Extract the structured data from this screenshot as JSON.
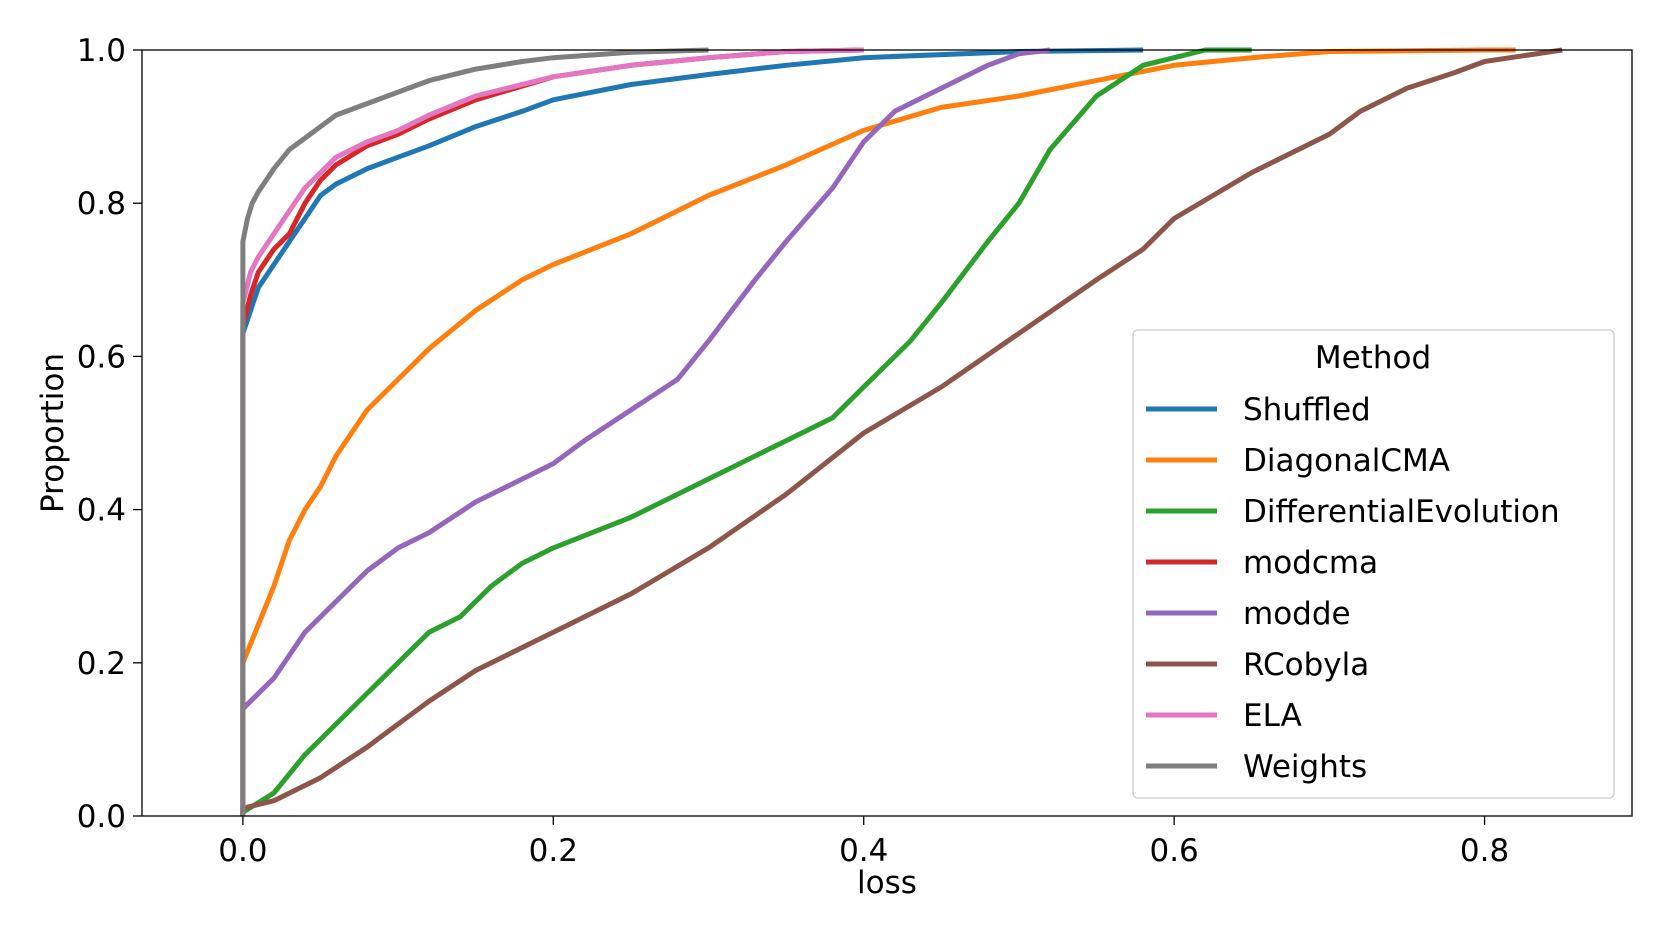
{
  "chart_data": {
    "type": "line",
    "title": "",
    "xlabel": "loss",
    "ylabel": "Proportion",
    "xlim": [
      -0.065,
      0.895
    ],
    "ylim": [
      0.0,
      1.0
    ],
    "xticks": [
      0.0,
      0.2,
      0.4,
      0.6,
      0.8
    ],
    "yticks": [
      0.0,
      0.2,
      0.4,
      0.6,
      0.8,
      1.0
    ],
    "xtick_labels": [
      "0.0",
      "0.2",
      "0.4",
      "0.6",
      "0.8"
    ],
    "ytick_labels": [
      "0.0",
      "0.2",
      "0.4",
      "0.6",
      "0.8",
      "1.0"
    ],
    "grid": false,
    "legend": {
      "title": "Method",
      "position": "center-right"
    },
    "series": [
      {
        "name": "Shuffled",
        "color": "#1f77b4",
        "x": [
          0.0,
          0.0,
          0.005,
          0.01,
          0.02,
          0.03,
          0.04,
          0.05,
          0.06,
          0.08,
          0.1,
          0.12,
          0.15,
          0.18,
          0.2,
          0.25,
          0.3,
          0.35,
          0.4,
          0.5,
          0.58
        ],
        "y": [
          0.0,
          0.63,
          0.66,
          0.69,
          0.72,
          0.75,
          0.78,
          0.81,
          0.825,
          0.845,
          0.86,
          0.875,
          0.9,
          0.92,
          0.935,
          0.955,
          0.968,
          0.98,
          0.99,
          0.998,
          1.0
        ]
      },
      {
        "name": "DiagonalCMA",
        "color": "#ff7f0e",
        "x": [
          0.0,
          0.0,
          0.01,
          0.02,
          0.03,
          0.04,
          0.05,
          0.06,
          0.08,
          0.1,
          0.12,
          0.15,
          0.18,
          0.2,
          0.25,
          0.3,
          0.35,
          0.4,
          0.45,
          0.5,
          0.55,
          0.6,
          0.65,
          0.7,
          0.8,
          0.82
        ],
        "y": [
          0.0,
          0.2,
          0.25,
          0.3,
          0.36,
          0.4,
          0.43,
          0.47,
          0.53,
          0.57,
          0.61,
          0.66,
          0.7,
          0.72,
          0.76,
          0.81,
          0.85,
          0.895,
          0.925,
          0.94,
          0.96,
          0.98,
          0.99,
          0.998,
          1.0,
          1.0
        ]
      },
      {
        "name": "DifferentialEvolution",
        "color": "#2ca02c",
        "x": [
          0.0,
          0.0,
          0.02,
          0.04,
          0.06,
          0.08,
          0.1,
          0.12,
          0.14,
          0.16,
          0.18,
          0.2,
          0.25,
          0.3,
          0.35,
          0.38,
          0.4,
          0.43,
          0.45,
          0.48,
          0.5,
          0.52,
          0.55,
          0.58,
          0.6,
          0.62,
          0.65
        ],
        "y": [
          0.0,
          0.005,
          0.03,
          0.08,
          0.12,
          0.16,
          0.2,
          0.24,
          0.26,
          0.3,
          0.33,
          0.35,
          0.39,
          0.44,
          0.49,
          0.52,
          0.56,
          0.62,
          0.67,
          0.75,
          0.8,
          0.87,
          0.94,
          0.98,
          0.99,
          1.0,
          1.0
        ]
      },
      {
        "name": "modcma",
        "color": "#d62728",
        "x": [
          0.0,
          0.0,
          0.005,
          0.01,
          0.02,
          0.03,
          0.04,
          0.05,
          0.06,
          0.08,
          0.1,
          0.12,
          0.15,
          0.2,
          0.25,
          0.3,
          0.35,
          0.4
        ],
        "y": [
          0.0,
          0.64,
          0.68,
          0.71,
          0.74,
          0.76,
          0.8,
          0.83,
          0.85,
          0.875,
          0.89,
          0.91,
          0.935,
          0.965,
          0.98,
          0.99,
          0.998,
          1.0
        ]
      },
      {
        "name": "modde",
        "color": "#9467bd",
        "x": [
          0.0,
          0.0,
          0.02,
          0.04,
          0.06,
          0.08,
          0.1,
          0.12,
          0.15,
          0.18,
          0.2,
          0.22,
          0.25,
          0.28,
          0.3,
          0.33,
          0.35,
          0.38,
          0.4,
          0.42,
          0.45,
          0.48,
          0.5,
          0.52
        ],
        "y": [
          0.0,
          0.14,
          0.18,
          0.24,
          0.28,
          0.32,
          0.35,
          0.37,
          0.41,
          0.44,
          0.46,
          0.49,
          0.53,
          0.57,
          0.62,
          0.7,
          0.75,
          0.82,
          0.88,
          0.92,
          0.95,
          0.98,
          0.995,
          1.0
        ]
      },
      {
        "name": "RCobyla",
        "color": "#8c564b",
        "x": [
          0.0,
          0.0,
          0.02,
          0.05,
          0.08,
          0.1,
          0.12,
          0.15,
          0.2,
          0.25,
          0.3,
          0.35,
          0.4,
          0.45,
          0.5,
          0.55,
          0.58,
          0.6,
          0.65,
          0.7,
          0.72,
          0.75,
          0.78,
          0.8,
          0.85
        ],
        "y": [
          0.0,
          0.01,
          0.02,
          0.05,
          0.09,
          0.12,
          0.15,
          0.19,
          0.24,
          0.29,
          0.35,
          0.42,
          0.5,
          0.56,
          0.63,
          0.7,
          0.74,
          0.78,
          0.84,
          0.89,
          0.92,
          0.95,
          0.97,
          0.985,
          1.0
        ]
      },
      {
        "name": "ELA",
        "color": "#e377c2",
        "x": [
          0.0,
          0.0,
          0.005,
          0.01,
          0.02,
          0.03,
          0.04,
          0.05,
          0.06,
          0.08,
          0.1,
          0.12,
          0.15,
          0.2,
          0.25,
          0.3,
          0.35,
          0.4
        ],
        "y": [
          0.0,
          0.67,
          0.71,
          0.73,
          0.76,
          0.79,
          0.82,
          0.84,
          0.86,
          0.88,
          0.895,
          0.915,
          0.94,
          0.965,
          0.98,
          0.99,
          0.998,
          1.0
        ]
      },
      {
        "name": "Weights",
        "color": "#7f7f7f",
        "x": [
          0.0,
          0.0,
          0.003,
          0.006,
          0.01,
          0.015,
          0.02,
          0.03,
          0.04,
          0.05,
          0.06,
          0.08,
          0.1,
          0.12,
          0.15,
          0.18,
          0.2,
          0.25,
          0.3
        ],
        "y": [
          0.0,
          0.75,
          0.78,
          0.8,
          0.815,
          0.83,
          0.845,
          0.87,
          0.885,
          0.9,
          0.915,
          0.93,
          0.945,
          0.96,
          0.975,
          0.985,
          0.99,
          0.997,
          1.0
        ]
      }
    ]
  }
}
